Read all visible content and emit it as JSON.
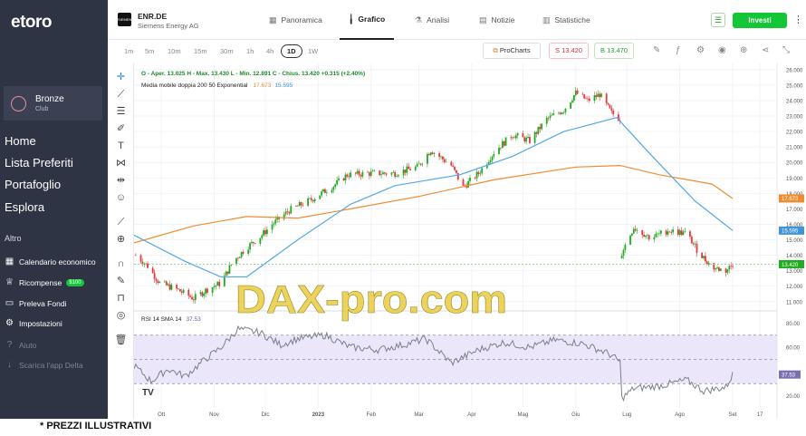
{
  "sidebar": {
    "logo": "etoro",
    "club": {
      "name": "Bronze",
      "subtitle": "Club"
    },
    "nav": [
      "Home",
      "Lista Preferiti",
      "Portafoglio",
      "Esplora"
    ],
    "section_label": "Altro",
    "sub": [
      {
        "label": "Calendario economico",
        "icon": "calendar-icon"
      },
      {
        "label": "Ricompense",
        "icon": "rewards-icon",
        "badge": "$100"
      },
      {
        "label": "Preleva Fondi",
        "icon": "withdraw-icon"
      },
      {
        "label": "Impostazioni",
        "icon": "gear-icon"
      },
      {
        "label": "Aiuto",
        "icon": "help-icon"
      },
      {
        "label": "Scarica l'app Delta",
        "icon": "download-icon"
      }
    ]
  },
  "header": {
    "symbol": "ENR.DE",
    "name": "Siemens Energy AG",
    "tabs": [
      {
        "label": "Panoramica",
        "icon": "overview-icon"
      },
      {
        "label": "Grafico",
        "icon": "chart-icon"
      },
      {
        "label": "Analisi",
        "icon": "analysis-icon"
      },
      {
        "label": "Notizie",
        "icon": "news-icon"
      },
      {
        "label": "Statistiche",
        "icon": "stats-icon"
      }
    ],
    "active_tab": "Grafico",
    "invest_label": "Investi"
  },
  "toolbar": {
    "timeframes": [
      "1m",
      "5m",
      "10m",
      "15m",
      "30m",
      "1h",
      "4h",
      "1D",
      "1W"
    ],
    "active_timeframe": "1D",
    "procharts_label": "ProCharts",
    "sell_label": "S 13.420",
    "buy_label": "B 13.470"
  },
  "chart_data": {
    "type": "candlestick",
    "ohlc_label": "O - Aper. 13.025  H - Max. 13.430  L - Min. 12.891  C - Chius. 13.420  +0.315 (+2.40%)",
    "ma_label": "Media mobile doppia 200 50 Exponential",
    "ma_200_value": "17.673",
    "ma_50_value": "15.595",
    "last_price": "13.420",
    "y_ticks": [
      "26.000",
      "25.000",
      "24.000",
      "23.000",
      "22.000",
      "21.000",
      "20.000",
      "19.000",
      "18.000",
      "17.000",
      "16.000",
      "15.000",
      "14.000",
      "13.000",
      "12.000",
      "11.000"
    ],
    "x_ticks": [
      "Ott",
      "Nov",
      "Dic",
      "2023",
      "Feb",
      "Mar",
      "Apr",
      "Mag",
      "Giu",
      "Lug",
      "Ago",
      "Set",
      "17"
    ],
    "x_range": [
      "2022-09-15",
      "2023-09-27"
    ],
    "ylim": [
      10.4,
      26.4
    ],
    "close_path": [
      {
        "date": "2022-09-16",
        "close": 14.0
      },
      {
        "date": "2022-09-23",
        "close": 13.3
      },
      {
        "date": "2022-09-30",
        "close": 12.2
      },
      {
        "date": "2022-10-10",
        "close": 11.8
      },
      {
        "date": "2022-10-20",
        "close": 11.2
      },
      {
        "date": "2022-10-28",
        "close": 11.8
      },
      {
        "date": "2022-11-05",
        "close": 12.2
      },
      {
        "date": "2022-11-12",
        "close": 13.6
      },
      {
        "date": "2022-11-20",
        "close": 14.5
      },
      {
        "date": "2022-11-28",
        "close": 15.2
      },
      {
        "date": "2022-12-05",
        "close": 16.0
      },
      {
        "date": "2022-12-15",
        "close": 16.9
      },
      {
        "date": "2022-12-28",
        "close": 17.6
      },
      {
        "date": "2023-01-10",
        "close": 18.5
      },
      {
        "date": "2023-01-18",
        "close": 19.2
      },
      {
        "date": "2023-01-31",
        "close": 19.3
      },
      {
        "date": "2023-02-15",
        "close": 19.3
      },
      {
        "date": "2023-02-28",
        "close": 19.7
      },
      {
        "date": "2023-03-08",
        "close": 20.8
      },
      {
        "date": "2023-03-20",
        "close": 19.8
      },
      {
        "date": "2023-03-27",
        "close": 18.4
      },
      {
        "date": "2023-04-05",
        "close": 19.3
      },
      {
        "date": "2023-04-15",
        "close": 20.8
      },
      {
        "date": "2023-04-25",
        "close": 21.8
      },
      {
        "date": "2023-05-05",
        "close": 21.4
      },
      {
        "date": "2023-05-15",
        "close": 22.8
      },
      {
        "date": "2023-05-25",
        "close": 23.4
      },
      {
        "date": "2023-06-01",
        "close": 24.5
      },
      {
        "date": "2023-06-08",
        "close": 24.0
      },
      {
        "date": "2023-06-15",
        "close": 24.4
      },
      {
        "date": "2023-06-22",
        "close": 23.2
      },
      {
        "date": "2023-06-27",
        "close": 22.8
      },
      {
        "date": "2023-06-28",
        "close": 14.2
      },
      {
        "date": "2023-07-05",
        "close": 15.8
      },
      {
        "date": "2023-07-15",
        "close": 15.1
      },
      {
        "date": "2023-07-25",
        "close": 15.6
      },
      {
        "date": "2023-08-05",
        "close": 15.4
      },
      {
        "date": "2023-08-12",
        "close": 14.2
      },
      {
        "date": "2023-08-20",
        "close": 13.2
      },
      {
        "date": "2023-08-28",
        "close": 13.0
      },
      {
        "date": "2023-09-01",
        "close": 13.42
      }
    ],
    "ma_200": [
      {
        "date": "2022-09-15",
        "value": 14.8
      },
      {
        "date": "2022-10-20",
        "value": 15.9
      },
      {
        "date": "2022-11-20",
        "value": 16.5
      },
      {
        "date": "2022-12-20",
        "value": 16.4
      },
      {
        "date": "2023-01-20",
        "value": 17.0
      },
      {
        "date": "2023-03-01",
        "value": 17.8
      },
      {
        "date": "2023-04-15",
        "value": 18.9
      },
      {
        "date": "2023-06-01",
        "value": 19.7
      },
      {
        "date": "2023-06-27",
        "value": 19.8
      },
      {
        "date": "2023-07-20",
        "value": 19.2
      },
      {
        "date": "2023-08-20",
        "value": 18.6
      },
      {
        "date": "2023-09-01",
        "value": 17.67
      }
    ],
    "ma_50": [
      {
        "date": "2022-09-15",
        "value": 15.3
      },
      {
        "date": "2022-10-15",
        "value": 13.6
      },
      {
        "date": "2022-11-05",
        "value": 12.6
      },
      {
        "date": "2022-11-20",
        "value": 12.6
      },
      {
        "date": "2022-12-20",
        "value": 15.0
      },
      {
        "date": "2023-01-20",
        "value": 17.3
      },
      {
        "date": "2023-02-15",
        "value": 18.5
      },
      {
        "date": "2023-03-25",
        "value": 19.2
      },
      {
        "date": "2023-04-25",
        "value": 20.4
      },
      {
        "date": "2023-05-25",
        "value": 22.0
      },
      {
        "date": "2023-06-25",
        "value": 22.9
      },
      {
        "date": "2023-07-15",
        "value": 20.5
      },
      {
        "date": "2023-08-10",
        "value": 17.5
      },
      {
        "date": "2023-09-01",
        "value": 15.6
      }
    ],
    "rsi": {
      "label": "RSI 14 SMA 14",
      "value": "37.53",
      "y_ticks": [
        "80.00",
        "60.00",
        "37.53",
        "20.00"
      ],
      "ylim": [
        10,
        90
      ],
      "band": [
        30,
        70
      ],
      "points": [
        {
          "date": "2022-09-15",
          "value": 45
        },
        {
          "date": "2022-09-25",
          "value": 32
        },
        {
          "date": "2022-10-05",
          "value": 42
        },
        {
          "date": "2022-10-15",
          "value": 36
        },
        {
          "date": "2022-10-25",
          "value": 48
        },
        {
          "date": "2022-11-05",
          "value": 60
        },
        {
          "date": "2022-11-15",
          "value": 75
        },
        {
          "date": "2022-11-28",
          "value": 72
        },
        {
          "date": "2022-12-10",
          "value": 62
        },
        {
          "date": "2022-12-20",
          "value": 67
        },
        {
          "date": "2023-01-05",
          "value": 70
        },
        {
          "date": "2023-01-20",
          "value": 60
        },
        {
          "date": "2023-02-05",
          "value": 58
        },
        {
          "date": "2023-02-20",
          "value": 62
        },
        {
          "date": "2023-03-05",
          "value": 67
        },
        {
          "date": "2023-03-20",
          "value": 47
        },
        {
          "date": "2023-04-05",
          "value": 58
        },
        {
          "date": "2023-04-20",
          "value": 64
        },
        {
          "date": "2023-05-05",
          "value": 60
        },
        {
          "date": "2023-05-20",
          "value": 66
        },
        {
          "date": "2023-06-05",
          "value": 63
        },
        {
          "date": "2023-06-20",
          "value": 55
        },
        {
          "date": "2023-06-27",
          "value": 48
        },
        {
          "date": "2023-06-28",
          "value": 18
        },
        {
          "date": "2023-07-05",
          "value": 26
        },
        {
          "date": "2023-07-20",
          "value": 28
        },
        {
          "date": "2023-08-05",
          "value": 33
        },
        {
          "date": "2023-08-15",
          "value": 24
        },
        {
          "date": "2023-08-28",
          "value": 27
        },
        {
          "date": "2023-09-01",
          "value": 37.5
        }
      ]
    }
  },
  "watermark": "DAX-pro.com",
  "footnote": "* PREZZI ILLUSTRATIVI",
  "colors": {
    "up": "#22ab22",
    "down": "#e03a3a",
    "ma200": "#f08b32",
    "ma50": "#54a8e6",
    "rsi": "#7a7f8c",
    "rsi_band": "#ece6fb"
  }
}
